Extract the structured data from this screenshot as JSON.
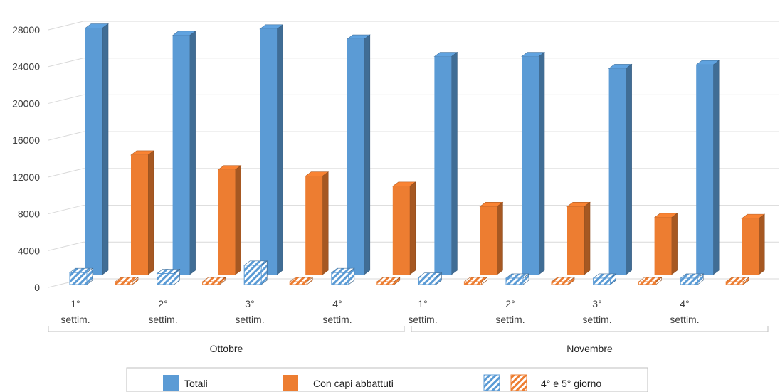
{
  "chart_data": {
    "type": "bar",
    "title": "",
    "xlabel": "",
    "ylabel": "",
    "ylim": [
      0,
      28000
    ],
    "y_ticks": [
      0,
      4000,
      8000,
      12000,
      16000,
      20000,
      24000,
      28000
    ],
    "grid": true,
    "legend_position": "bottom",
    "groups": [
      {
        "name": "Ottobre",
        "categories": [
          [
            "1°",
            "settim."
          ],
          [
            "2°",
            "settim."
          ],
          [
            "3°",
            "settim."
          ],
          [
            "4°",
            "settim."
          ]
        ]
      },
      {
        "name": "Novembre",
        "categories": [
          [
            "1°",
            "settim."
          ],
          [
            "2°",
            "settim."
          ],
          [
            "3°",
            "settim."
          ],
          [
            "4°",
            "settim."
          ]
        ]
      }
    ],
    "series": [
      {
        "name": "Totali",
        "color": "#5b9bd5",
        "values": [
          26800,
          26000,
          26700,
          25600,
          23700,
          23700,
          22400,
          22800
        ]
      },
      {
        "name": "Con capi abbattuti",
        "color": "#ed7d31",
        "values": [
          13000,
          11400,
          10700,
          9600,
          7400,
          7400,
          6200,
          6100
        ]
      }
    ],
    "overlay_series": [
      {
        "name": "4° e 5° giorno (Totali)",
        "color": "#5b9bd5",
        "pattern": "hatch",
        "values": [
          1300,
          1200,
          2100,
          1300,
          800,
          700,
          700,
          700
        ]
      },
      {
        "name": "4° e 5° giorno (Con capi abbattuti)",
        "color": "#ed7d31",
        "pattern": "hatch",
        "values": [
          200,
          200,
          300,
          300,
          200,
          100,
          200,
          100
        ]
      }
    ],
    "legend": {
      "totali": "Totali",
      "con_capi": "Con capi abbattuti",
      "giorni": "4° e 5° giorno"
    }
  }
}
